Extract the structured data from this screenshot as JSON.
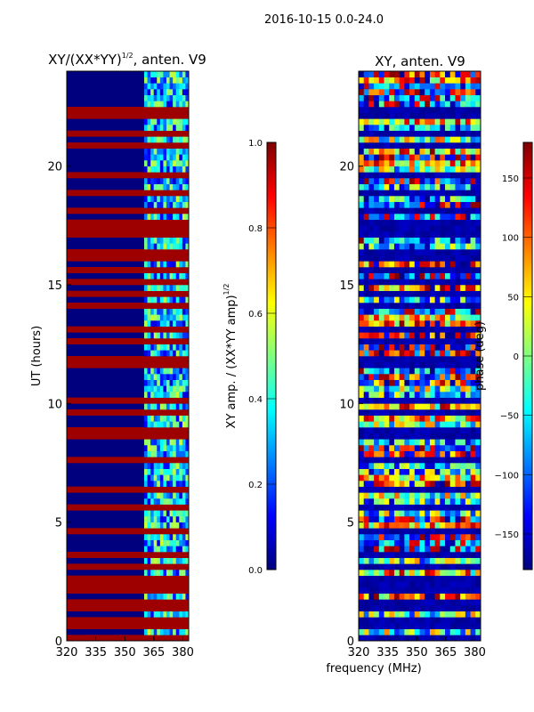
{
  "suptitle": "2016-10-15 0.0-24.0",
  "common_xlabel": "frequency (MHz)",
  "chart_data": [
    {
      "type": "heatmap",
      "title": "XY/(XX*YY)",
      "title_exponent": "1/2",
      "title_suffix": ", anten. V9",
      "xlabel": "",
      "ylabel": "UT (hours)",
      "xlim": [
        320,
        383
      ],
      "ylim": [
        0,
        24
      ],
      "xticks": [
        320,
        335,
        350,
        365,
        380
      ],
      "yticks": [
        0,
        5,
        10,
        15,
        20
      ],
      "colormap": "jet",
      "colorbar": {
        "label": "XY amp. / (XX*YY amp)",
        "label_exponent": "1/2",
        "range": [
          0.0,
          1.0
        ],
        "ticks": [
          "0.0",
          "0.2",
          "0.4",
          "0.6",
          "0.8",
          "1.0"
        ]
      },
      "band_edge_mhz": 360,
      "flagged_rows_hours": [
        0.2,
        0.5,
        0.9,
        1.3,
        1.7,
        2.1,
        2.45,
        2.6,
        3.1,
        3.2,
        3.5,
        3.65,
        4.5,
        4.7,
        5.7,
        6.3,
        7.5,
        7.7,
        8.5,
        8.9,
        9.5,
        10.0,
        10.2,
        11.7,
        11.8,
        12.5,
        13.0,
        14.0,
        14.5,
        14.7,
        15.2,
        15.6,
        16.0,
        16.4,
        17.0,
        17.3,
        17.45,
        17.6,
        18.0,
        18.8,
        19.6,
        20.8,
        21.4,
        22.0,
        22.3
      ],
      "description": "amplitude near 0 (dark blue) below ~360 MHz; 0.3-0.6 speckle above 360 MHz; flagged rows at 1.0"
    },
    {
      "type": "heatmap",
      "title": "XY, anten. V9",
      "xlabel": "",
      "ylabel": "",
      "xlim": [
        320,
        383
      ],
      "ylim": [
        0,
        24
      ],
      "xticks": [
        320,
        335,
        350,
        365,
        380
      ],
      "yticks": [
        0,
        5,
        10,
        15,
        20
      ],
      "colormap": "jet",
      "colorbar": {
        "label": "phase (deg)",
        "range": [
          -180,
          180
        ],
        "ticks": [
          "−150",
          "−100",
          "−50",
          "0",
          "50",
          "100",
          "150"
        ]
      },
      "description": "noisy phase spanning -180 to 180 deg across all frequencies and times"
    }
  ]
}
